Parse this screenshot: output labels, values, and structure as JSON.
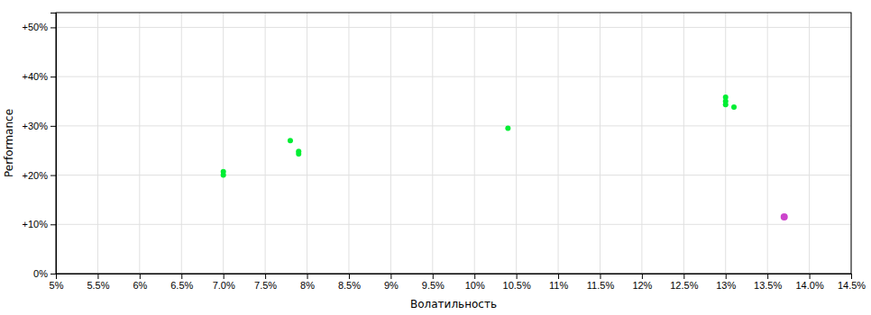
{
  "chart_data": {
    "type": "scatter",
    "xlabel": "Волатильность",
    "ylabel": "Performance",
    "xlim": [
      0.05,
      0.145
    ],
    "ylim": [
      0.0,
      0.53
    ],
    "xticks": [
      {
        "value": 0.05,
        "label": "5%"
      },
      {
        "value": 0.055,
        "label": "5.5%"
      },
      {
        "value": 0.06,
        "label": "6%"
      },
      {
        "value": 0.065,
        "label": "6.5%"
      },
      {
        "value": 0.07,
        "label": "7.0%"
      },
      {
        "value": 0.075,
        "label": "7.5%"
      },
      {
        "value": 0.08,
        "label": "8%"
      },
      {
        "value": 0.085,
        "label": "8.5%"
      },
      {
        "value": 0.09,
        "label": "9%"
      },
      {
        "value": 0.095,
        "label": "9.5%"
      },
      {
        "value": 0.1,
        "label": "10%"
      },
      {
        "value": 0.105,
        "label": "10.5%"
      },
      {
        "value": 0.11,
        "label": "11%"
      },
      {
        "value": 0.115,
        "label": "11.5%"
      },
      {
        "value": 0.12,
        "label": "12%"
      },
      {
        "value": 0.125,
        "label": "12.5%"
      },
      {
        "value": 0.13,
        "label": "13%"
      },
      {
        "value": 0.135,
        "label": "13.5%"
      },
      {
        "value": 0.14,
        "label": "14.0%"
      },
      {
        "value": 0.145,
        "label": "14.5%"
      }
    ],
    "yticks": [
      {
        "value": 0.0,
        "label": "0%"
      },
      {
        "value": 0.1,
        "label": "+10%"
      },
      {
        "value": 0.2,
        "label": "+20%"
      },
      {
        "value": 0.3,
        "label": "+30%"
      },
      {
        "value": 0.4,
        "label": "+40%"
      },
      {
        "value": 0.5,
        "label": "+50%"
      }
    ],
    "grid": true,
    "series": [
      {
        "color": "#00ee33",
        "x": [
          0.07,
          0.07,
          0.078,
          0.079,
          0.079,
          0.104,
          0.13,
          0.13,
          0.13,
          0.131
        ],
        "values": [
          0.207,
          0.2,
          0.27,
          0.248,
          0.243,
          0.295,
          0.358,
          0.35,
          0.343,
          0.338
        ]
      },
      {
        "color": "#cc44cc",
        "x": [
          0.137
        ],
        "values": [
          0.115
        ]
      }
    ]
  }
}
